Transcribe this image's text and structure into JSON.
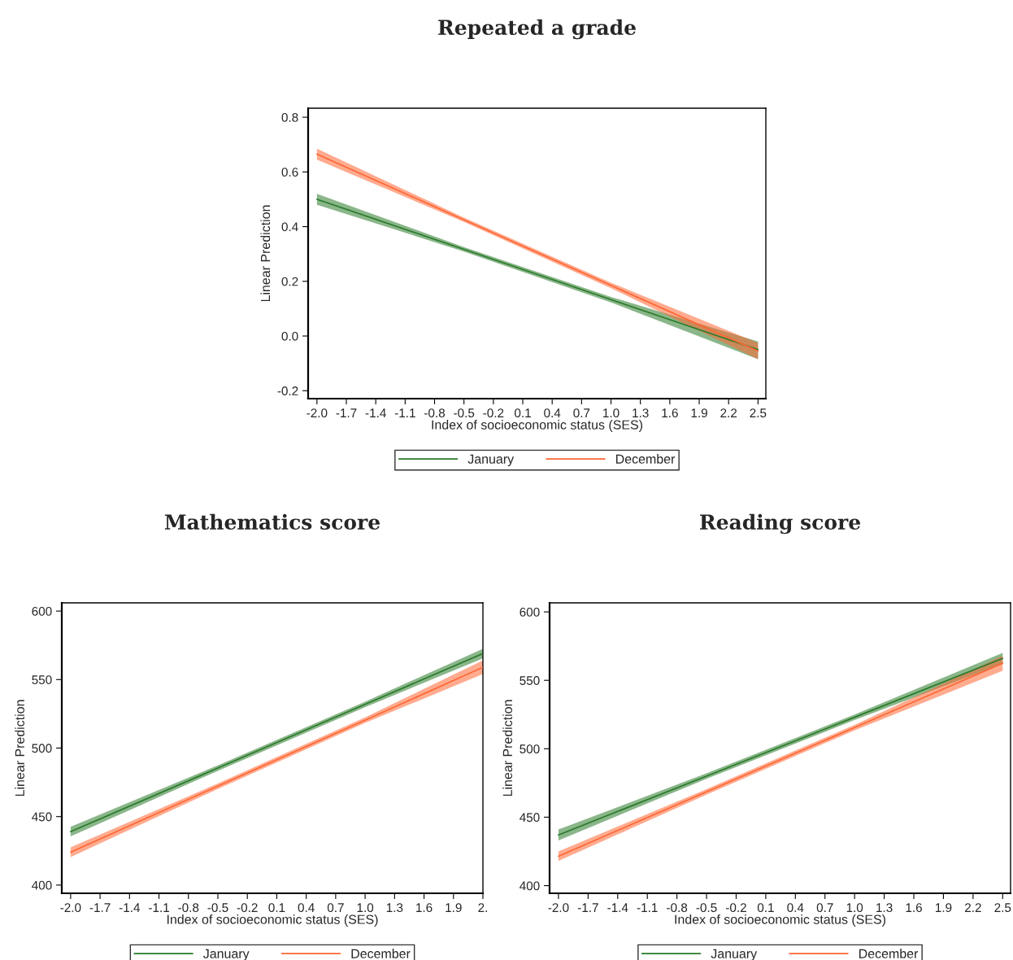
{
  "chart_data": [
    {
      "type": "line",
      "title": "Repeated a grade",
      "xlabel": "Index of socioeconomic status (SES)",
      "ylabel": "Linear Prediction",
      "x": [
        -2.0,
        -0.5,
        1.0,
        2.5
      ],
      "series": [
        {
          "name": "January",
          "color": "#2a7a2a",
          "values": [
            0.5,
            0.317,
            0.133,
            -0.05
          ],
          "lower": [
            0.48,
            0.309,
            0.123,
            -0.085
          ],
          "upper": [
            0.52,
            0.325,
            0.143,
            -0.02
          ]
        },
        {
          "name": "December",
          "color": "#ff6633",
          "values": [
            0.665,
            0.425,
            0.185,
            -0.055
          ],
          "lower": [
            0.645,
            0.417,
            0.175,
            -0.085
          ],
          "upper": [
            0.685,
            0.433,
            0.195,
            -0.025
          ]
        }
      ],
      "xlim": [
        -2.09,
        2.58
      ],
      "xticks": [
        {
          "value": -2,
          "label": "-2.0"
        },
        -1.7,
        -1.4,
        -1.1,
        -0.8,
        -0.5,
        -0.2,
        0.1,
        0.4,
        0.7,
        {
          "value": 1,
          "label": "1.0"
        },
        1.3,
        1.6,
        1.9,
        2.2,
        2.5
      ],
      "ylim": [
        -0.229,
        0.833
      ],
      "yticks": [
        -0.2,
        {
          "value": 0,
          "label": "0.0"
        },
        0.2,
        0.4,
        0.6,
        0.8
      ],
      "legend": "bottom",
      "grid": false
    },
    {
      "type": "line",
      "title": "Mathematics score",
      "xlabel": "Index of socioeconomic status (SES)",
      "ylabel": "Linear Prediction",
      "x": [
        -2.0,
        -0.5,
        1.0,
        2.2
      ],
      "series": [
        {
          "name": "January",
          "color": "#2a7a2a",
          "values": [
            439,
            485.4,
            531.9,
            569
          ],
          "lower": [
            435.5,
            483.4,
            529.9,
            565.5
          ],
          "upper": [
            442.5,
            487.4,
            533.9,
            572.5
          ]
        },
        {
          "name": "December",
          "color": "#ff6633",
          "values": [
            424,
            472.2,
            520.4,
            559
          ],
          "lower": [
            420.5,
            470.2,
            518.4,
            554
          ],
          "upper": [
            427.5,
            474.2,
            522.4,
            564
          ]
        }
      ],
      "xlim": [
        -2.09,
        2.2
      ],
      "xticks": [
        {
          "value": -2,
          "label": "-2.0"
        },
        -1.7,
        -1.4,
        -1.1,
        -0.8,
        -0.5,
        -0.2,
        0.1,
        0.4,
        0.7,
        {
          "value": 1,
          "label": "1.0"
        },
        1.3,
        1.6,
        1.9,
        {
          "value": 2.2,
          "label": "2."
        }
      ],
      "ylim": [
        394,
        606
      ],
      "yticks": [
        400,
        450,
        500,
        550,
        600
      ],
      "legend": "bottom",
      "grid": false
    },
    {
      "type": "line",
      "title": "Reading score",
      "xlabel": "Index of socioeconomic status (SES)",
      "ylabel": "Linear Prediction",
      "x": [
        -2.0,
        -0.5,
        1.0,
        2.5
      ],
      "series": [
        {
          "name": "January",
          "color": "#2a7a2a",
          "values": [
            437,
            480,
            523,
            566
          ],
          "lower": [
            433,
            478,
            521,
            562
          ],
          "upper": [
            441,
            482,
            525,
            570
          ]
        },
        {
          "name": "December",
          "color": "#ff6633",
          "values": [
            421.5,
            468.5,
            515.5,
            562.5
          ],
          "lower": [
            418,
            466.5,
            513.5,
            557
          ],
          "upper": [
            425,
            470.5,
            517.5,
            568
          ]
        }
      ],
      "xlim": [
        -2.09,
        2.58
      ],
      "xticks": [
        {
          "value": -2,
          "label": "-2.0"
        },
        -1.7,
        -1.4,
        -1.1,
        -0.8,
        -0.5,
        -0.2,
        0.1,
        0.4,
        0.7,
        {
          "value": 1,
          "label": "1.0"
        },
        1.3,
        1.6,
        1.9,
        2.2,
        2.5
      ],
      "ylim": [
        394.4,
        606.6
      ],
      "yticks": [
        400,
        450,
        500,
        550,
        600
      ],
      "legend": "bottom",
      "grid": false
    }
  ]
}
